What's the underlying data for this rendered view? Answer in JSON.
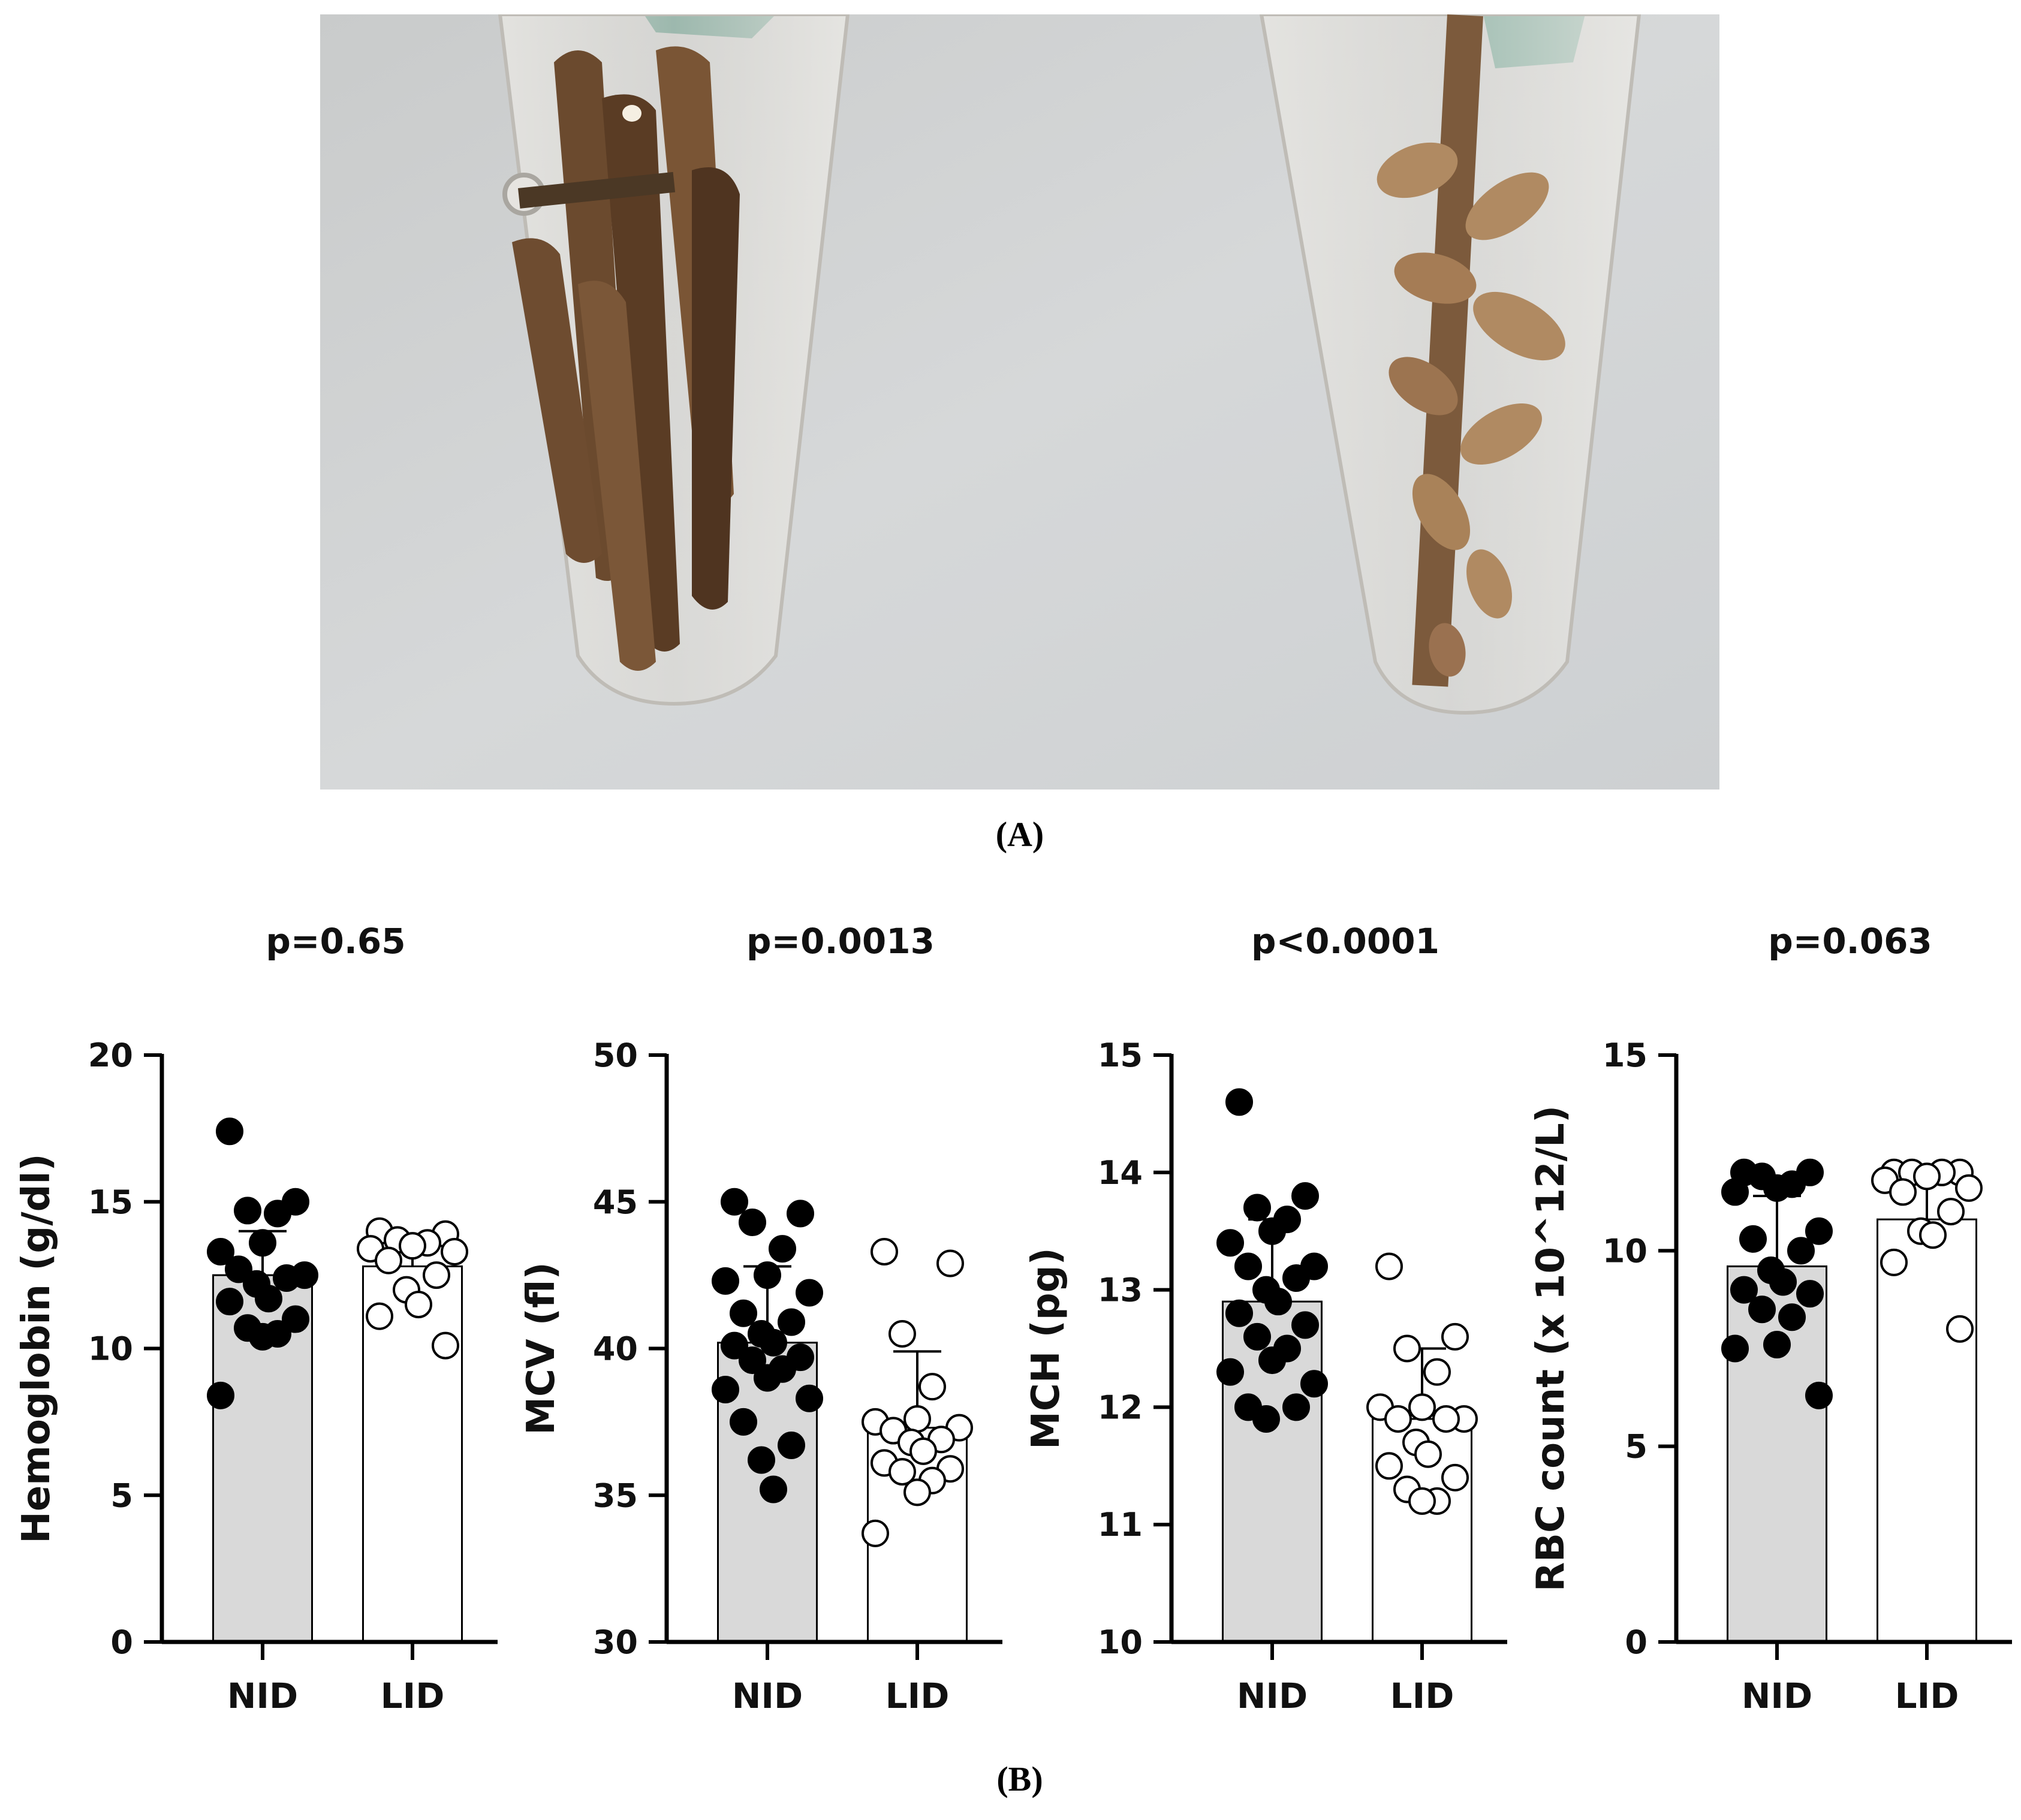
{
  "panels": {
    "a_label": "(A)",
    "b_label": "(B)"
  },
  "photo": {
    "tubes": [
      {
        "name": "left-tube",
        "contents": "dark-brown"
      },
      {
        "name": "right-tube",
        "contents": "light-tan"
      }
    ]
  },
  "chart_data": [
    {
      "type": "bar",
      "p_value": "p=0.65",
      "ylabel": "Hemoglobin (g/dl)",
      "ylim": [
        0,
        20
      ],
      "yticks": [
        0,
        5,
        10,
        15,
        20
      ],
      "categories": [
        "NID",
        "LID"
      ],
      "bar_values": [
        12.5,
        12.8
      ],
      "error_upper": [
        14.0,
        13.8
      ],
      "points": [
        [
          17.4,
          15.0,
          14.7,
          14.6,
          13.6,
          13.3,
          12.5,
          12.7,
          12.4,
          12.2,
          11.7,
          11.6,
          11.0,
          10.7,
          10.5,
          10.4,
          8.4
        ],
        [
          14.0,
          13.9,
          13.7,
          13.6,
          13.5,
          13.4,
          13.3,
          13.0,
          12.5,
          12.0,
          11.5,
          11.1,
          10.1
        ]
      ],
      "bar_colors": [
        "#d9d9d9",
        "#ffffff"
      ],
      "point_fill": [
        "#000000",
        "#ffffff"
      ]
    },
    {
      "type": "bar",
      "p_value": "p=0.0013",
      "ylabel": "MCV (fl)",
      "ylim": [
        30,
        50
      ],
      "yticks": [
        30,
        35,
        40,
        45,
        50
      ],
      "categories": [
        "NID",
        "LID"
      ],
      "bar_values": [
        40.2,
        37.3
      ],
      "error_upper": [
        42.8,
        39.9
      ],
      "points": [
        [
          45.0,
          44.6,
          44.3,
          43.4,
          42.5,
          42.3,
          41.9,
          41.2,
          40.9,
          40.5,
          40.2,
          40.1,
          39.7,
          39.6,
          39.3,
          39.0,
          38.6,
          38.3,
          37.5,
          36.7,
          36.2,
          35.2
        ],
        [
          43.3,
          42.9,
          40.5,
          38.7,
          37.6,
          37.5,
          37.3,
          37.2,
          36.9,
          36.8,
          36.5,
          36.1,
          35.9,
          35.8,
          35.5,
          35.1,
          33.7
        ]
      ],
      "bar_colors": [
        "#d9d9d9",
        "#ffffff"
      ],
      "point_fill": [
        "#000000",
        "#ffffff"
      ]
    },
    {
      "type": "bar",
      "p_value": "p<0.0001",
      "ylabel": "MCH (pg)",
      "ylim": [
        10,
        15
      ],
      "yticks": [
        10,
        11,
        12,
        13,
        14,
        15
      ],
      "categories": [
        "NID",
        "LID"
      ],
      "bar_values": [
        12.9,
        11.9
      ],
      "error_upper": [
        13.6,
        12.5
      ],
      "points": [
        [
          14.6,
          13.8,
          13.7,
          13.6,
          13.5,
          13.4,
          13.2,
          13.2,
          13.1,
          13.0,
          12.9,
          12.8,
          12.7,
          12.6,
          12.5,
          12.4,
          12.3,
          12.2,
          12.0,
          12.0,
          11.9
        ],
        [
          13.2,
          12.6,
          12.5,
          12.3,
          12.0,
          12.0,
          11.9,
          11.9,
          11.9,
          11.7,
          11.6,
          11.5,
          11.4,
          11.3,
          11.2,
          11.2
        ]
      ],
      "bar_colors": [
        "#d9d9d9",
        "#ffffff"
      ],
      "point_fill": [
        "#000000",
        "#ffffff"
      ]
    },
    {
      "type": "bar",
      "p_value": "p=0.063",
      "ylabel": "RBC count (x 10^12/L)",
      "ylim": [
        0,
        15
      ],
      "yticks": [
        0,
        5,
        10,
        15
      ],
      "categories": [
        "NID",
        "LID"
      ],
      "bar_values": [
        9.6,
        10.8
      ],
      "error_upper": [
        11.4,
        11.8
      ],
      "points": [
        [
          12.0,
          12.0,
          11.9,
          11.7,
          11.6,
          11.5,
          10.5,
          10.3,
          10.0,
          9.5,
          9.2,
          9.0,
          8.9,
          8.5,
          8.3,
          7.6,
          7.5,
          6.3
        ],
        [
          12.0,
          12.0,
          12.0,
          12.0,
          11.9,
          11.8,
          11.6,
          11.5,
          11.0,
          10.5,
          10.4,
          9.7,
          8.0
        ]
      ],
      "bar_colors": [
        "#d9d9d9",
        "#ffffff"
      ],
      "point_fill": [
        "#000000",
        "#ffffff"
      ]
    }
  ]
}
